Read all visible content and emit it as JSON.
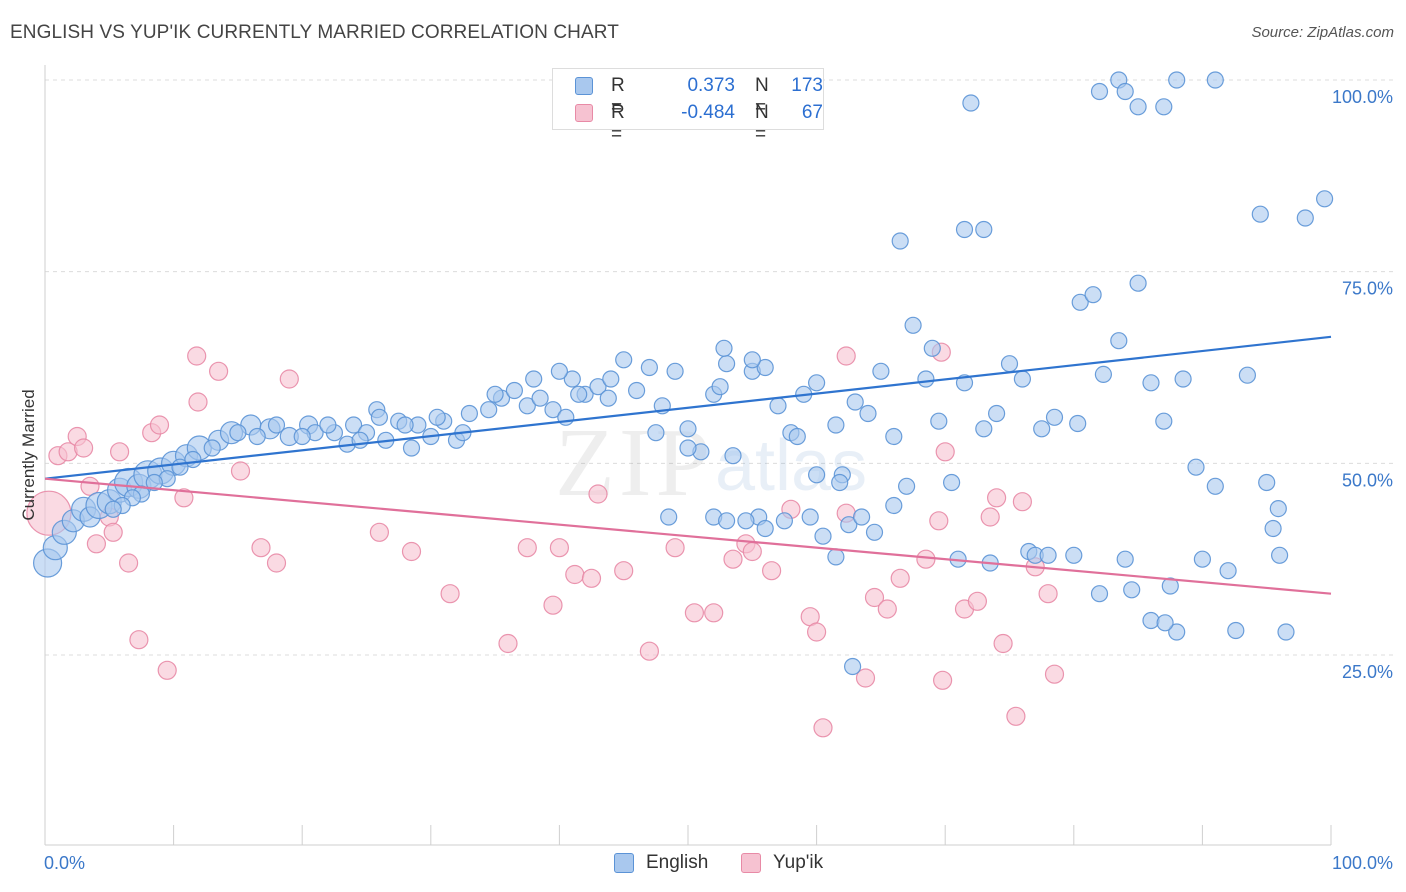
{
  "title": "ENGLISH VS YUP'IK CURRENTLY MARRIED CORRELATION CHART",
  "source": "Source: ZipAtlas.com",
  "legend": {
    "english": {
      "r_label": "R =",
      "r_value": "0.373",
      "n_label": "N =",
      "n_value": "173"
    },
    "yupik": {
      "r_label": "R =",
      "r_value": "-0.484",
      "n_label": "N =",
      "n_value": "67"
    }
  },
  "colors": {
    "english_fill": "#a9c8ee",
    "english_stroke": "#5b93d6",
    "english_line": "#2f74cf",
    "yupik_fill": "#f6c2d1",
    "yupik_stroke": "#e88aa6",
    "yupik_line": "#e0709a",
    "tick_label": "#3b78c9",
    "grid": "#dcdcdc"
  },
  "chart_data": {
    "type": "scatter",
    "title": "ENGLISH VS YUP'IK CURRENTLY MARRIED CORRELATION CHART",
    "xlabel": "",
    "ylabel": "Currently Married",
    "xlim": [
      0,
      100
    ],
    "ylim": [
      0,
      102
    ],
    "x_tick_labels": [
      "0.0%",
      "100.0%"
    ],
    "y_ticks": [
      25,
      50,
      75,
      100
    ],
    "y_tick_labels": [
      "25.0%",
      "50.0%",
      "75.0%",
      "100.0%"
    ],
    "grid": true,
    "legend_position": "top-center",
    "watermark": "ZIPatlas",
    "series": [
      {
        "name": "English",
        "r": 0.373,
        "n": 173,
        "trendline": [
          [
            0,
            48.0
          ],
          [
            100,
            66.5
          ]
        ],
        "points": [
          [
            0.2,
            37,
            14
          ],
          [
            0.8,
            39,
            12
          ],
          [
            1.5,
            41,
            12
          ],
          [
            2.2,
            42.5,
            11
          ],
          [
            3,
            44,
            12
          ],
          [
            3.5,
            43,
            10
          ],
          [
            4.2,
            44.5,
            13
          ],
          [
            5,
            45,
            12
          ],
          [
            5.8,
            46.5,
            12
          ],
          [
            6.5,
            47.5,
            14
          ],
          [
            7.3,
            47,
            12
          ],
          [
            8,
            48.5,
            14
          ],
          [
            9,
            49,
            13
          ],
          [
            10,
            50,
            12
          ],
          [
            11,
            51,
            11
          ],
          [
            12,
            52,
            12
          ],
          [
            13.5,
            53,
            10
          ],
          [
            14.5,
            54,
            11
          ],
          [
            16,
            55,
            10
          ],
          [
            17.5,
            54.5,
            10
          ],
          [
            19,
            53.5,
            9
          ],
          [
            20.5,
            55,
            9
          ],
          [
            21,
            54,
            8
          ],
          [
            22.5,
            54,
            8
          ],
          [
            23.5,
            52.5,
            8
          ],
          [
            24,
            55,
            8
          ],
          [
            25,
            54,
            8
          ],
          [
            25.8,
            57,
            8
          ],
          [
            26.5,
            53,
            8
          ],
          [
            27.5,
            55.5,
            8
          ],
          [
            28.5,
            52,
            8
          ],
          [
            29,
            55,
            8
          ],
          [
            30,
            53.5,
            8
          ],
          [
            31,
            55.5,
            8
          ],
          [
            32,
            53,
            8
          ],
          [
            33,
            56.5,
            8
          ],
          [
            34.5,
            57,
            8
          ],
          [
            35.5,
            58.5,
            8
          ],
          [
            36.5,
            59.5,
            8
          ],
          [
            37.5,
            57.5,
            8
          ],
          [
            38.5,
            58.5,
            8
          ],
          [
            39.5,
            57,
            8
          ],
          [
            40.5,
            56,
            8
          ],
          [
            41,
            61,
            8
          ],
          [
            42,
            59,
            8
          ],
          [
            43,
            60,
            8
          ],
          [
            43.8,
            58.5,
            8
          ],
          [
            45,
            63.5,
            8
          ],
          [
            46,
            59.5,
            8
          ],
          [
            47,
            62.5,
            8
          ],
          [
            48,
            57.5,
            8
          ],
          [
            49,
            62,
            8
          ],
          [
            50,
            54.5,
            8
          ],
          [
            51,
            51.5,
            8
          ],
          [
            52,
            59,
            8
          ],
          [
            53,
            63,
            8
          ],
          [
            53.5,
            51,
            8
          ],
          [
            55,
            62,
            8
          ],
          [
            56,
            62.5,
            8
          ],
          [
            57,
            57.5,
            8
          ],
          [
            58,
            54,
            8
          ],
          [
            59,
            59,
            8
          ],
          [
            60,
            60.5,
            8
          ],
          [
            61.5,
            55,
            8
          ],
          [
            62,
            48.5,
            8
          ],
          [
            63,
            58,
            8
          ],
          [
            64,
            56.5,
            8
          ],
          [
            65,
            62,
            8
          ],
          [
            66,
            53.5,
            8
          ],
          [
            67,
            47,
            8
          ],
          [
            68.5,
            61,
            8
          ],
          [
            69.5,
            55.5,
            8
          ],
          [
            70.5,
            47.5,
            8
          ],
          [
            71.5,
            60.5,
            8
          ],
          [
            73,
            54.5,
            8
          ],
          [
            74,
            56.5,
            8
          ],
          [
            75,
            63,
            8
          ],
          [
            76,
            61,
            8
          ],
          [
            77.5,
            54.5,
            8
          ],
          [
            78.5,
            56,
            8
          ],
          [
            80.5,
            71,
            8
          ],
          [
            81.5,
            72,
            8
          ],
          [
            83.5,
            66,
            8
          ],
          [
            85,
            73.5,
            8
          ],
          [
            86,
            60.5,
            8
          ],
          [
            87,
            55.5,
            8
          ],
          [
            88.5,
            61,
            8
          ],
          [
            89.5,
            49.5,
            8
          ],
          [
            91,
            47,
            8
          ],
          [
            93.5,
            61.5,
            8
          ],
          [
            95,
            47.5,
            8
          ],
          [
            96.5,
            28,
            8
          ],
          [
            98,
            82,
            8
          ],
          [
            99.5,
            84.5,
            8
          ],
          [
            50,
            52,
            8
          ],
          [
            52.5,
            60,
            8
          ],
          [
            55,
            63.5,
            8
          ],
          [
            47.5,
            54,
            8
          ],
          [
            44,
            61,
            8
          ],
          [
            41.5,
            59,
            8
          ],
          [
            40,
            62,
            8
          ],
          [
            38,
            61,
            8
          ],
          [
            35,
            59,
            8
          ],
          [
            32.5,
            54,
            8
          ],
          [
            30.5,
            56,
            8
          ],
          [
            28,
            55,
            8
          ],
          [
            26,
            56,
            8
          ],
          [
            24.5,
            53,
            8
          ],
          [
            22,
            55,
            8
          ],
          [
            20,
            53.5,
            8
          ],
          [
            18,
            55,
            8
          ],
          [
            16.5,
            53.5,
            8
          ],
          [
            15,
            54,
            8
          ],
          [
            13,
            52,
            8
          ],
          [
            11.5,
            50.5,
            8
          ],
          [
            10.5,
            49.5,
            8
          ],
          [
            9.5,
            48,
            8
          ],
          [
            8.5,
            47.5,
            8
          ],
          [
            7.5,
            46,
            8
          ],
          [
            6.8,
            45.5,
            8
          ],
          [
            6,
            44.5,
            8
          ],
          [
            5.3,
            44,
            8
          ],
          [
            48.5,
            43,
            8
          ],
          [
            52,
            43,
            8
          ],
          [
            53,
            42.5,
            8
          ],
          [
            60,
            48.5,
            8
          ],
          [
            62.5,
            42,
            8
          ],
          [
            63.5,
            43,
            8
          ],
          [
            64.5,
            41,
            8
          ],
          [
            58.5,
            53.5,
            8
          ],
          [
            71,
            37.5,
            8
          ],
          [
            73.5,
            37,
            8
          ],
          [
            76.5,
            38.5,
            8
          ],
          [
            77,
            38,
            8
          ],
          [
            78,
            38,
            8
          ],
          [
            80,
            38,
            8
          ],
          [
            82,
            33,
            8
          ],
          [
            84,
            37.5,
            8
          ],
          [
            86,
            29.5,
            8
          ],
          [
            88,
            28,
            8
          ],
          [
            90,
            37.5,
            8
          ],
          [
            92,
            36,
            8
          ],
          [
            95.5,
            41.5,
            8
          ],
          [
            96,
            38,
            8
          ],
          [
            62.8,
            23.5,
            8
          ],
          [
            66.5,
            79,
            8
          ],
          [
            71.5,
            80.5,
            8
          ],
          [
            73,
            80.5,
            8
          ],
          [
            82,
            98.5,
            8
          ],
          [
            83.5,
            100,
            8
          ],
          [
            84,
            98.5,
            8
          ],
          [
            85,
            96.5,
            8
          ],
          [
            87,
            96.5,
            8
          ],
          [
            88,
            100,
            8
          ],
          [
            91,
            100,
            8
          ],
          [
            94.5,
            82.5,
            8
          ],
          [
            84.5,
            33.5,
            8
          ],
          [
            87.5,
            34,
            8
          ],
          [
            55.5,
            43,
            8
          ],
          [
            54.5,
            42.5,
            8
          ],
          [
            57.5,
            42.5,
            8
          ],
          [
            56,
            41.5,
            8
          ],
          [
            67.5,
            68,
            8
          ],
          [
            69,
            65,
            8
          ],
          [
            72,
            97,
            8
          ],
          [
            59.5,
            43,
            8
          ],
          [
            60.5,
            40.5,
            8
          ],
          [
            61.8,
            47.5,
            8
          ],
          [
            52.8,
            65,
            8
          ],
          [
            66,
            44.5,
            8
          ],
          [
            80.3,
            55.2,
            8
          ],
          [
            82.3,
            61.6,
            8
          ],
          [
            61.5,
            37.8,
            8
          ],
          [
            92.6,
            28.2,
            8
          ],
          [
            87.1,
            29.2,
            8
          ],
          [
            95.9,
            44.1,
            8
          ]
        ]
      },
      {
        "name": "Yup'ik",
        "r": -0.484,
        "n": 67,
        "trendline": [
          [
            0,
            48.0
          ],
          [
            100,
            33.0
          ]
        ],
        "points": [
          [
            0.3,
            43.5,
            22
          ],
          [
            1,
            51,
            9
          ],
          [
            1.8,
            51.5,
            9
          ],
          [
            2.5,
            53.5,
            9
          ],
          [
            3,
            52,
            9
          ],
          [
            3.5,
            47,
            9
          ],
          [
            4,
            39.5,
            9
          ],
          [
            5,
            43,
            9
          ],
          [
            5.3,
            41,
            9
          ],
          [
            5.8,
            51.5,
            9
          ],
          [
            6.5,
            37,
            9
          ],
          [
            7.3,
            27,
            9
          ],
          [
            8.3,
            54,
            9
          ],
          [
            8.9,
            55,
            9
          ],
          [
            9.5,
            23,
            9
          ],
          [
            10.8,
            45.5,
            9
          ],
          [
            11.8,
            64,
            9
          ],
          [
            11.9,
            58,
            9
          ],
          [
            13.5,
            62,
            9
          ],
          [
            15.2,
            49,
            9
          ],
          [
            16.8,
            39,
            9
          ],
          [
            18,
            37,
            9
          ],
          [
            19,
            61,
            9
          ],
          [
            26,
            41,
            9
          ],
          [
            28.5,
            38.5,
            9
          ],
          [
            31.5,
            33,
            9
          ],
          [
            36,
            26.5,
            9
          ],
          [
            37.5,
            39,
            9
          ],
          [
            39.5,
            31.5,
            9
          ],
          [
            40,
            39,
            9
          ],
          [
            41.2,
            35.5,
            9
          ],
          [
            42.5,
            35,
            9
          ],
          [
            43,
            46,
            9
          ],
          [
            45,
            36,
            9
          ],
          [
            47,
            25.5,
            9
          ],
          [
            49,
            39,
            9
          ],
          [
            50.5,
            30.5,
            9
          ],
          [
            52,
            30.5,
            9
          ],
          [
            53.5,
            37.5,
            9
          ],
          [
            54.5,
            39.5,
            9
          ],
          [
            55,
            38.5,
            9
          ],
          [
            56.5,
            36,
            9
          ],
          [
            58,
            44,
            9
          ],
          [
            59.5,
            30,
            9
          ],
          [
            60,
            28,
            9
          ],
          [
            60.5,
            15.5,
            9
          ],
          [
            62.3,
            43.5,
            9
          ],
          [
            63.8,
            22,
            9
          ],
          [
            64.5,
            32.5,
            9
          ],
          [
            65.5,
            31,
            9
          ],
          [
            66.5,
            35,
            9
          ],
          [
            68.5,
            37.5,
            9
          ],
          [
            69.5,
            42.5,
            9
          ],
          [
            70,
            51.5,
            9
          ],
          [
            71.5,
            31,
            9
          ],
          [
            72.5,
            32,
            9
          ],
          [
            73.5,
            43,
            9
          ],
          [
            74,
            45.5,
            9
          ],
          [
            74.5,
            26.5,
            9
          ],
          [
            75.5,
            17,
            9
          ],
          [
            76,
            45,
            9
          ],
          [
            77,
            36.5,
            9
          ],
          [
            78,
            33,
            9
          ],
          [
            78.5,
            22.5,
            9
          ],
          [
            62.3,
            64,
            9
          ],
          [
            69.7,
            64.5,
            9
          ],
          [
            69.8,
            21.7,
            9
          ]
        ]
      }
    ]
  }
}
